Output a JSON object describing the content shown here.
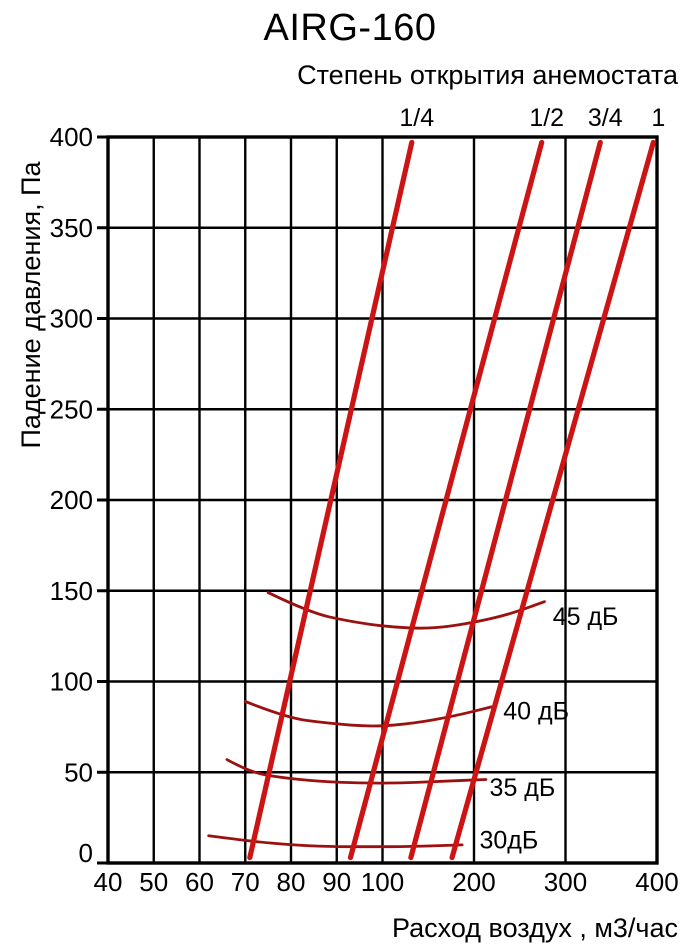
{
  "header": {
    "title": "AIRG-160",
    "subtitle": "Степень открытия анемостата"
  },
  "chart_data": {
    "type": "line",
    "title": "AIRG-160",
    "subtitle": "Степень открытия анемостата",
    "xlabel": "Расход воздух , м3/час",
    "ylabel": "Падение давления, Па",
    "xlim": [
      40,
      400
    ],
    "ylim": [
      0,
      400
    ],
    "grid": true,
    "x_scale": "segmented: ticks 40-100 equally spaced over left half, 100-400 over right half",
    "x_ticks": [
      40,
      50,
      60,
      70,
      80,
      90,
      100,
      200,
      300,
      400
    ],
    "y_ticks": [
      0,
      50,
      100,
      150,
      200,
      250,
      300,
      350,
      400
    ],
    "colors": {
      "grid": "#000000",
      "opening_lines": "#cc1414",
      "noise_curves": "#9c1010",
      "text": "#000000",
      "background": "#ffffff"
    },
    "opening_lines": [
      {
        "label": "1/4",
        "points": [
          [
            71,
            3
          ],
          [
            132,
            397
          ]
        ]
      },
      {
        "label": "1/2",
        "points": [
          [
            93,
            3
          ],
          [
            274,
            397
          ]
        ]
      },
      {
        "label": "3/4",
        "points": [
          [
            131,
            3
          ],
          [
            338,
            397
          ]
        ]
      },
      {
        "label": "1",
        "points": [
          [
            176,
            3
          ],
          [
            396,
            397
          ]
        ]
      }
    ],
    "noise_curves": [
      {
        "label": "45 дБ",
        "label_at": [
          286,
          136
        ],
        "points": [
          [
            75,
            149
          ],
          [
            84,
            138
          ],
          [
            93,
            133
          ],
          [
            108,
            130
          ],
          [
            152,
            129
          ],
          [
            195,
            132
          ],
          [
            239,
            137
          ],
          [
            277,
            144
          ]
        ]
      },
      {
        "label": "40 дБ",
        "label_at": [
          232,
          84
        ],
        "points": [
          [
            70,
            89
          ],
          [
            79,
            80
          ],
          [
            88,
            77
          ],
          [
            98,
            75
          ],
          [
            135,
            77
          ],
          [
            179,
            81
          ],
          [
            219,
            86
          ]
        ]
      },
      {
        "label": "35 дБ",
        "label_at": [
          217,
          42
        ],
        "points": [
          [
            66,
            57
          ],
          [
            71,
            50
          ],
          [
            78,
            47
          ],
          [
            86,
            45
          ],
          [
            95,
            44
          ],
          [
            119,
            44
          ],
          [
            162,
            45
          ],
          [
            213,
            46
          ]
        ]
      },
      {
        "label": "30дБ",
        "label_at": [
          206,
          13
        ],
        "points": [
          [
            62,
            15
          ],
          [
            71,
            12
          ],
          [
            80,
            10
          ],
          [
            88,
            9
          ],
          [
            97,
            9
          ],
          [
            130,
            9
          ],
          [
            187,
            10
          ]
        ]
      }
    ]
  }
}
